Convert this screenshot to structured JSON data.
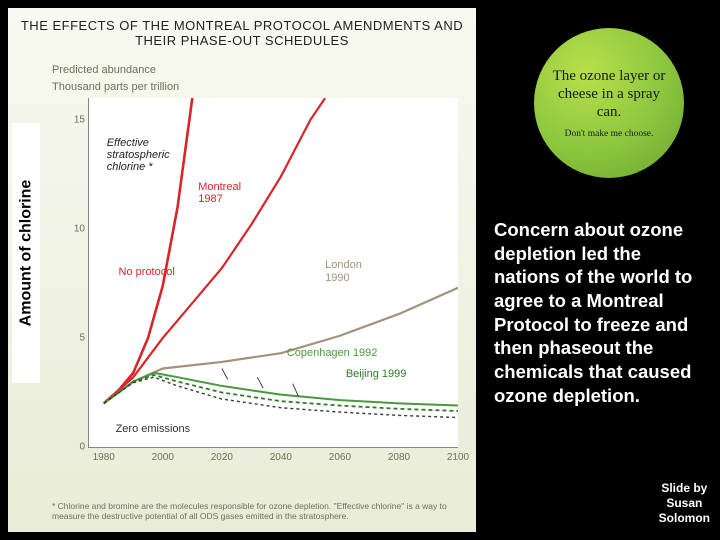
{
  "chart": {
    "title": "THE EFFECTS OF THE MONTREAL PROTOCOL AMENDMENTS AND THEIR PHASE-OUT SCHEDULES",
    "ylabel": "Amount of chlorine",
    "subtitle_l1": "Predicted abundance",
    "subtitle_l2": "Thousand parts per trillion",
    "yticks": [
      0,
      5,
      10,
      15
    ],
    "ylim": [
      0,
      16
    ],
    "xticks": [
      1980,
      2000,
      2020,
      2040,
      2060,
      2080,
      2100
    ],
    "xlim": [
      1975,
      2100
    ],
    "footnote": "* Chlorine and bromine are the molecules responsible for ozone depletion. \"Effective chlorine\" is a way to measure the destructive potential of all ODS gases emitted in the stratosphere.",
    "series": {
      "no_protocol": {
        "label_l1": "No protocol",
        "color": "#d8252a",
        "width": 2.6,
        "dash": "none",
        "points": [
          [
            1980,
            2.0
          ],
          [
            1985,
            2.6
          ],
          [
            1990,
            3.4
          ],
          [
            1995,
            5.0
          ],
          [
            2000,
            7.4
          ],
          [
            2005,
            11.0
          ],
          [
            2010,
            16.0
          ]
        ]
      },
      "montreal_1987": {
        "label_l1": "Montreal",
        "label_l2": "1987",
        "color": "#d8252a",
        "width": 2.2,
        "dash": "none",
        "points": [
          [
            1980,
            2.0
          ],
          [
            1990,
            3.2
          ],
          [
            2000,
            5.0
          ],
          [
            2010,
            6.6
          ],
          [
            2020,
            8.2
          ],
          [
            2030,
            10.2
          ],
          [
            2040,
            12.4
          ],
          [
            2050,
            15.0
          ],
          [
            2055,
            16.0
          ]
        ]
      },
      "london_1990": {
        "label_l1": "London",
        "label_l2": "1990",
        "color": "#a39178",
        "width": 2.2,
        "dash": "none",
        "points": [
          [
            1980,
            2.0
          ],
          [
            1990,
            3.0
          ],
          [
            2000,
            3.6
          ],
          [
            2020,
            3.9
          ],
          [
            2040,
            4.3
          ],
          [
            2060,
            5.1
          ],
          [
            2080,
            6.1
          ],
          [
            2100,
            7.3
          ]
        ]
      },
      "copenhagen_1992": {
        "label_l1": "Copenhagen 1992",
        "color": "#4a9a3c",
        "width": 2.0,
        "dash": "none",
        "points": [
          [
            1980,
            2.0
          ],
          [
            1990,
            3.0
          ],
          [
            1997,
            3.4
          ],
          [
            2005,
            3.2
          ],
          [
            2020,
            2.8
          ],
          [
            2040,
            2.4
          ],
          [
            2060,
            2.15
          ],
          [
            2080,
            2.0
          ],
          [
            2100,
            1.9
          ]
        ]
      },
      "beijing_1999": {
        "label_l1": "Beijing 1999",
        "color": "#2e7a28",
        "width": 1.8,
        "dash": "4 3",
        "points": [
          [
            1980,
            2.0
          ],
          [
            1990,
            3.0
          ],
          [
            1997,
            3.3
          ],
          [
            2005,
            3.0
          ],
          [
            2020,
            2.5
          ],
          [
            2040,
            2.1
          ],
          [
            2060,
            1.9
          ],
          [
            2080,
            1.75
          ],
          [
            2100,
            1.65
          ]
        ]
      },
      "zero_emissions": {
        "label_l1": "Zero emissions",
        "color": "#3a3a3a",
        "width": 1.4,
        "dash": "3 3",
        "points": [
          [
            1980,
            2.0
          ],
          [
            1990,
            2.95
          ],
          [
            1997,
            3.2
          ],
          [
            2005,
            2.8
          ],
          [
            2020,
            2.2
          ],
          [
            2040,
            1.8
          ],
          [
            2060,
            1.6
          ],
          [
            2080,
            1.45
          ],
          [
            2100,
            1.35
          ]
        ]
      },
      "effective_chlorine": {
        "label_l1": "Effective",
        "label_l2": "stratospheric",
        "label_l3": "chlorine *",
        "color": "#222",
        "width": 1.0
      }
    },
    "label_fontsize": 11,
    "tick_fontsize": 10,
    "title_fontsize": 13,
    "background_color": "#ffffff",
    "panel_bg_top": "#f8f9f0",
    "panel_bg_bottom": "#e8ecd8"
  },
  "badge": {
    "main": "The ozone layer or cheese in a spray can.",
    "sub": "Don't make me choose.",
    "circle_color": "#8bc63e",
    "main_fontsize": 15,
    "sub_fontsize": 9.5
  },
  "body": {
    "text": "Concern about ozone depletion led the nations of the world to agree to a Montreal Protocol to freeze and then phaseout the chemicals that caused ozone depletion.",
    "fontsize": 18.5,
    "color": "#ffffff"
  },
  "credit": {
    "line1": "Slide by",
    "line2": "Susan",
    "line3": "Solomon"
  }
}
